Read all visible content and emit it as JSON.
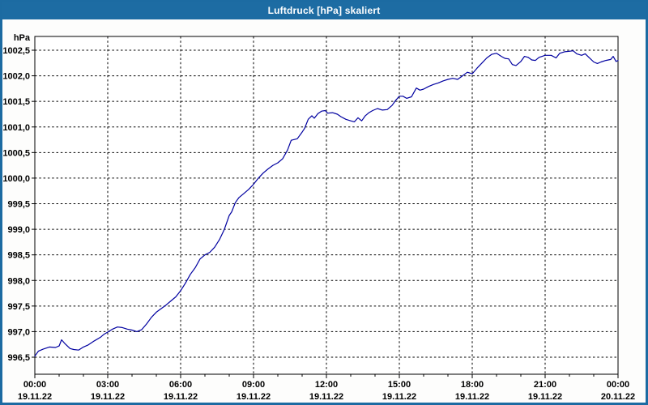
{
  "window": {
    "title": "Luftdruck [hPa] skaliert"
  },
  "colors": {
    "titlebar_bg": "#1d6ca3",
    "outer_border": "#1c6ba2",
    "panel_bg": "#fdfdfc",
    "plot_bg": "#ffffff",
    "grid": "#000000",
    "axis": "#000000",
    "label_text": "#000000",
    "title_text": "#ffffff",
    "line": "#0000a0"
  },
  "chart_data": {
    "type": "line",
    "title": "Luftdruck [hPa] skaliert",
    "ylabel_unit": "hPa",
    "ylim": [
      996.5,
      1002.5
    ],
    "grid": true,
    "legend": "none",
    "yticks": [
      {
        "value": 1002.5,
        "label": "1002,5"
      },
      {
        "value": 1002.0,
        "label": "1002,0"
      },
      {
        "value": 1001.5,
        "label": "1001,5"
      },
      {
        "value": 1001.0,
        "label": "1001,0"
      },
      {
        "value": 1000.5,
        "label": "1000,5"
      },
      {
        "value": 1000.0,
        "label": "1000,0"
      },
      {
        "value": 999.5,
        "label": "999,5"
      },
      {
        "value": 999.0,
        "label": "999,0"
      },
      {
        "value": 998.5,
        "label": "998,5"
      },
      {
        "value": 998.0,
        "label": "998,0"
      },
      {
        "value": 997.5,
        "label": "997,5"
      },
      {
        "value": 997.0,
        "label": "997,0"
      },
      {
        "value": 996.5,
        "label": "996,5"
      }
    ],
    "x_hours_range": [
      0,
      24
    ],
    "minor_tick_every_hours": 1,
    "xticks": [
      {
        "hour": 0,
        "time": "00:00",
        "date": "19.11.22"
      },
      {
        "hour": 3,
        "time": "03:00",
        "date": "19.11.22"
      },
      {
        "hour": 6,
        "time": "06:00",
        "date": "19.11.22"
      },
      {
        "hour": 9,
        "time": "09:00",
        "date": "19.11.22"
      },
      {
        "hour": 12,
        "time": "12:00",
        "date": "19.11.22"
      },
      {
        "hour": 15,
        "time": "15:00",
        "date": "19.11.22"
      },
      {
        "hour": 18,
        "time": "18:00",
        "date": "19.11.22"
      },
      {
        "hour": 21,
        "time": "21:00",
        "date": "19.11.22"
      },
      {
        "hour": 24,
        "time": "00:00",
        "date": "20.11.22"
      }
    ],
    "series": [
      {
        "name": "Luftdruck",
        "color": "#0000a0",
        "points": [
          [
            0.0,
            996.52
          ],
          [
            0.15,
            996.62
          ],
          [
            0.35,
            996.66
          ],
          [
            0.6,
            996.7
          ],
          [
            0.85,
            996.69
          ],
          [
            1.0,
            996.72
          ],
          [
            1.1,
            996.84
          ],
          [
            1.25,
            996.76
          ],
          [
            1.45,
            996.67
          ],
          [
            1.6,
            996.65
          ],
          [
            1.8,
            996.64
          ],
          [
            2.0,
            996.7
          ],
          [
            2.2,
            996.74
          ],
          [
            2.45,
            996.82
          ],
          [
            2.7,
            996.89
          ],
          [
            2.85,
            996.95
          ],
          [
            3.0,
            996.99
          ],
          [
            3.2,
            997.05
          ],
          [
            3.4,
            997.09
          ],
          [
            3.6,
            997.08
          ],
          [
            3.8,
            997.05
          ],
          [
            4.0,
            997.03
          ],
          [
            4.2,
            997.0
          ],
          [
            4.4,
            997.04
          ],
          [
            4.6,
            997.15
          ],
          [
            4.8,
            997.28
          ],
          [
            5.0,
            997.38
          ],
          [
            5.2,
            997.45
          ],
          [
            5.4,
            997.52
          ],
          [
            5.6,
            997.6
          ],
          [
            5.8,
            997.68
          ],
          [
            6.0,
            997.8
          ],
          [
            6.2,
            997.95
          ],
          [
            6.4,
            998.12
          ],
          [
            6.6,
            998.25
          ],
          [
            6.8,
            998.42
          ],
          [
            7.0,
            998.5
          ],
          [
            7.2,
            998.55
          ],
          [
            7.4,
            998.65
          ],
          [
            7.6,
            998.8
          ],
          [
            7.8,
            999.0
          ],
          [
            8.0,
            999.27
          ],
          [
            8.1,
            999.34
          ],
          [
            8.25,
            999.52
          ],
          [
            8.4,
            999.62
          ],
          [
            8.6,
            999.7
          ],
          [
            8.8,
            999.78
          ],
          [
            9.0,
            999.88
          ],
          [
            9.2,
            1000.0
          ],
          [
            9.4,
            1000.1
          ],
          [
            9.6,
            1000.18
          ],
          [
            9.8,
            1000.25
          ],
          [
            10.0,
            1000.3
          ],
          [
            10.2,
            1000.38
          ],
          [
            10.4,
            1000.55
          ],
          [
            10.55,
            1000.74
          ],
          [
            10.8,
            1000.77
          ],
          [
            11.0,
            1000.9
          ],
          [
            11.1,
            1000.97
          ],
          [
            11.25,
            1001.15
          ],
          [
            11.4,
            1001.22
          ],
          [
            11.5,
            1001.17
          ],
          [
            11.65,
            1001.26
          ],
          [
            11.8,
            1001.31
          ],
          [
            11.95,
            1001.32
          ],
          [
            12.05,
            1001.27
          ],
          [
            12.25,
            1001.28
          ],
          [
            12.45,
            1001.25
          ],
          [
            12.6,
            1001.2
          ],
          [
            12.8,
            1001.15
          ],
          [
            13.0,
            1001.12
          ],
          [
            13.15,
            1001.1
          ],
          [
            13.3,
            1001.18
          ],
          [
            13.45,
            1001.12
          ],
          [
            13.6,
            1001.22
          ],
          [
            13.75,
            1001.28
          ],
          [
            13.9,
            1001.32
          ],
          [
            14.1,
            1001.36
          ],
          [
            14.3,
            1001.33
          ],
          [
            14.5,
            1001.34
          ],
          [
            14.7,
            1001.42
          ],
          [
            14.85,
            1001.52
          ],
          [
            15.0,
            1001.6
          ],
          [
            15.15,
            1001.6
          ],
          [
            15.3,
            1001.56
          ],
          [
            15.5,
            1001.59
          ],
          [
            15.7,
            1001.76
          ],
          [
            15.85,
            1001.72
          ],
          [
            16.0,
            1001.74
          ],
          [
            16.2,
            1001.79
          ],
          [
            16.4,
            1001.83
          ],
          [
            16.6,
            1001.86
          ],
          [
            16.8,
            1001.9
          ],
          [
            17.0,
            1001.93
          ],
          [
            17.2,
            1001.95
          ],
          [
            17.4,
            1001.93
          ],
          [
            17.6,
            1002.0
          ],
          [
            17.8,
            1002.07
          ],
          [
            18.0,
            1002.04
          ],
          [
            18.2,
            1002.15
          ],
          [
            18.4,
            1002.25
          ],
          [
            18.6,
            1002.35
          ],
          [
            18.8,
            1002.42
          ],
          [
            19.0,
            1002.44
          ],
          [
            19.2,
            1002.38
          ],
          [
            19.35,
            1002.34
          ],
          [
            19.5,
            1002.33
          ],
          [
            19.65,
            1002.22
          ],
          [
            19.8,
            1002.2
          ],
          [
            20.0,
            1002.28
          ],
          [
            20.15,
            1002.38
          ],
          [
            20.3,
            1002.36
          ],
          [
            20.45,
            1002.31
          ],
          [
            20.6,
            1002.3
          ],
          [
            20.75,
            1002.36
          ],
          [
            21.0,
            1002.4
          ],
          [
            21.25,
            1002.4
          ],
          [
            21.45,
            1002.35
          ],
          [
            21.6,
            1002.44
          ],
          [
            21.8,
            1002.47
          ],
          [
            22.0,
            1002.48
          ],
          [
            22.15,
            1002.49
          ],
          [
            22.3,
            1002.43
          ],
          [
            22.5,
            1002.4
          ],
          [
            22.65,
            1002.43
          ],
          [
            22.8,
            1002.36
          ],
          [
            23.0,
            1002.27
          ],
          [
            23.15,
            1002.24
          ],
          [
            23.3,
            1002.27
          ],
          [
            23.5,
            1002.3
          ],
          [
            23.7,
            1002.32
          ],
          [
            23.8,
            1002.38
          ],
          [
            23.92,
            1002.28
          ],
          [
            24.0,
            1002.3
          ]
        ]
      }
    ]
  }
}
